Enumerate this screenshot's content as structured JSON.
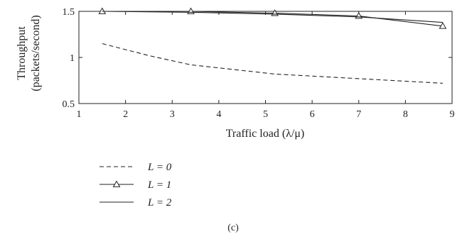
{
  "chart_data": {
    "type": "line",
    "xlabel": "Traffic load (λ/μ)",
    "ylabel_line1": "Throughput",
    "ylabel_line2": "(packets/second)",
    "xlim": [
      1,
      9
    ],
    "ylim": [
      0.5,
      1.5
    ],
    "x_ticks": [
      "1",
      "2",
      "3",
      "4",
      "5",
      "6",
      "7",
      "8",
      "9"
    ],
    "y_ticks": [
      "0.5",
      "1",
      "1.5"
    ],
    "grid": false,
    "legend_position": "below",
    "panel_label": "(c)",
    "series": [
      {
        "name": "L = 0",
        "style": "dashed",
        "marker": "none",
        "x": [
          1.5,
          2.5,
          3.4,
          5.2,
          7.0,
          8.8
        ],
        "y": [
          1.15,
          1.02,
          0.92,
          0.82,
          0.77,
          0.72
        ]
      },
      {
        "name": "L = 1",
        "style": "solid",
        "marker": "triangle",
        "x": [
          1.5,
          3.4,
          5.2,
          7.0,
          8.8
        ],
        "y": [
          1.5,
          1.5,
          1.48,
          1.45,
          1.34
        ]
      },
      {
        "name": "L = 2",
        "style": "solid",
        "marker": "none",
        "x": [
          1.5,
          3.4,
          5.2,
          7.0,
          8.8
        ],
        "y": [
          1.5,
          1.49,
          1.47,
          1.44,
          1.38
        ]
      }
    ]
  }
}
